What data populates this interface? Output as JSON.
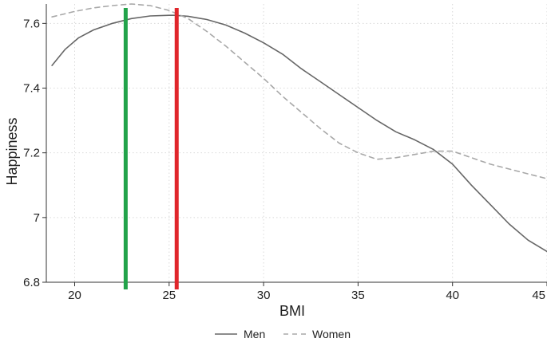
{
  "chart_data": {
    "type": "line",
    "title": "",
    "xlabel": "BMI",
    "ylabel": "Happiness",
    "xlim": [
      18.5,
      45
    ],
    "ylim": [
      6.8,
      7.66
    ],
    "x_ticks": [
      20,
      25,
      30,
      35,
      40,
      45
    ],
    "x_tick_labels": [
      "20",
      "25",
      "30",
      "35",
      "40",
      "45"
    ],
    "y_ticks": [
      6.8,
      7.0,
      7.2,
      7.4,
      7.6
    ],
    "y_tick_labels": [
      "6.8",
      "7",
      "7.2",
      "7.4",
      "7.6"
    ],
    "grid": true,
    "legend_placement": "bottom",
    "series": [
      {
        "name": "Men",
        "color": "#666666",
        "line_style": "solid",
        "x": [
          18.8,
          19.5,
          20.2,
          21,
          22,
          23,
          24,
          25,
          25.3,
          26,
          27,
          28,
          29,
          30,
          31,
          32,
          33,
          34,
          35,
          36,
          37,
          38,
          39,
          40,
          41,
          42,
          43,
          44,
          45
        ],
        "y": [
          7.47,
          7.52,
          7.555,
          7.58,
          7.6,
          7.615,
          7.623,
          7.625,
          7.625,
          7.622,
          7.612,
          7.595,
          7.57,
          7.54,
          7.505,
          7.46,
          7.42,
          7.38,
          7.34,
          7.3,
          7.265,
          7.24,
          7.21,
          7.165,
          7.1,
          7.04,
          6.98,
          6.93,
          6.895
        ]
      },
      {
        "name": "Women",
        "color": "#a8a8a8",
        "line_style": "dashed",
        "x": [
          18.8,
          19.5,
          20,
          21,
          22,
          23,
          24,
          25,
          26,
          27,
          28,
          29,
          30,
          31,
          32,
          33,
          34,
          35,
          36,
          37,
          38,
          39,
          40,
          41,
          42,
          43,
          44,
          45
        ],
        "y": [
          7.62,
          7.63,
          7.637,
          7.648,
          7.655,
          7.66,
          7.655,
          7.64,
          7.615,
          7.575,
          7.53,
          7.48,
          7.43,
          7.375,
          7.325,
          7.275,
          7.23,
          7.2,
          7.18,
          7.185,
          7.195,
          7.205,
          7.205,
          7.185,
          7.165,
          7.15,
          7.135,
          7.12
        ]
      }
    ],
    "reference_lines": [
      {
        "x": 22.7,
        "color": "#22a34a"
      },
      {
        "x": 25.4,
        "color": "#e0262b"
      }
    ]
  }
}
